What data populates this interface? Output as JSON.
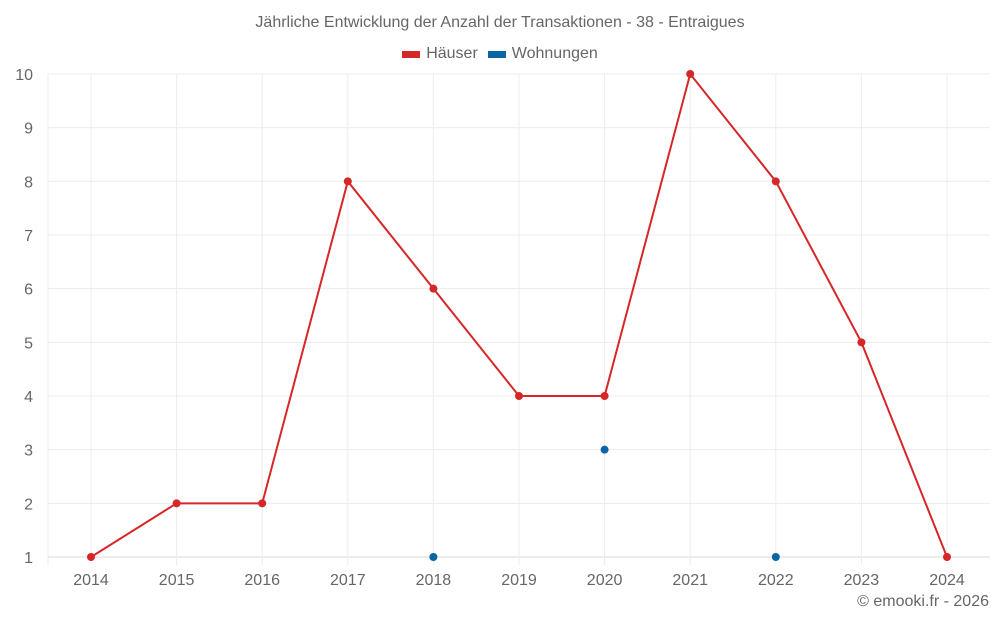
{
  "chart_data": {
    "type": "line",
    "title": "Jährliche Entwicklung der Anzahl der Transaktionen - 38 - Entraigues",
    "categories": [
      "2014",
      "2015",
      "2016",
      "2017",
      "2018",
      "2019",
      "2020",
      "2021",
      "2022",
      "2023",
      "2024"
    ],
    "series": [
      {
        "name": "Häuser",
        "color": "#d62728",
        "values": [
          1,
          2,
          2,
          8,
          6,
          4,
          4,
          10,
          8,
          5,
          1
        ],
        "style": "line+markers"
      },
      {
        "name": "Wohnungen",
        "color": "#0a66a3",
        "values": [
          null,
          null,
          null,
          null,
          1,
          null,
          3,
          null,
          1,
          null,
          null
        ],
        "style": "markers"
      }
    ],
    "xlabel": "",
    "ylabel": "",
    "ylim": [
      1,
      10
    ],
    "yticks": [
      1,
      2,
      3,
      4,
      5,
      6,
      7,
      8,
      9,
      10
    ],
    "grid": true,
    "legend_position": "top"
  },
  "credit": "© emooki.fr - 2026"
}
